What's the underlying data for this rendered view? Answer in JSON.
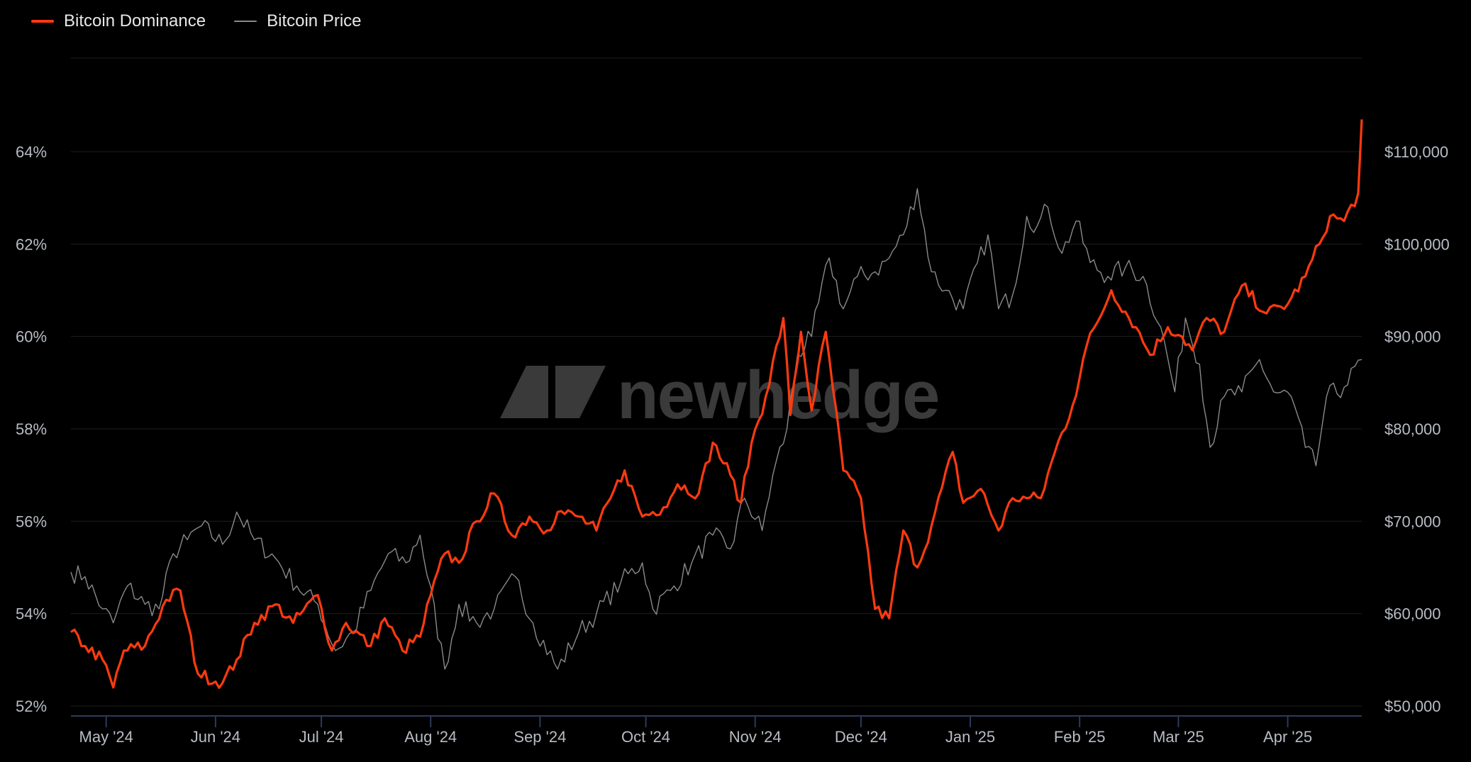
{
  "legend": {
    "dominance_label": "Bitcoin Dominance",
    "price_label": "Bitcoin Price"
  },
  "watermark": "newhedge",
  "colors": {
    "dominance": "#ff3a0f",
    "price": "#8a8a8a",
    "grid": "#1e1e1e",
    "axis": "#2b3a5c",
    "text": "#b8bcc4"
  },
  "chart_data": {
    "type": "line",
    "x_labels": [
      "May '24",
      "Jun '24",
      "Jul '24",
      "Aug '24",
      "Sep '24",
      "Oct '24",
      "Nov '24",
      "Dec '24",
      "Jan '25",
      "Feb '25",
      "Mar '25",
      "Apr '25"
    ],
    "y_left": {
      "ticks": [
        "52%",
        "54%",
        "56%",
        "58%",
        "60%",
        "62%",
        "64%"
      ],
      "range": [
        52,
        64
      ]
    },
    "y_right": {
      "ticks": [
        "$50,000",
        "$60,000",
        "$70,000",
        "$80,000",
        "$90,000",
        "$100,000",
        "$110,000"
      ],
      "range": [
        50000,
        110000
      ]
    },
    "x_range": [
      "2024-04-21",
      "2025-04-22"
    ],
    "grid": true,
    "legend_position": "top-left",
    "series": [
      {
        "name": "Bitcoin Dominance",
        "axis": "left",
        "keypoints": [
          [
            "2024-04-21",
            53.6
          ],
          [
            "2024-04-25",
            53.3
          ],
          [
            "2024-04-30",
            53.0
          ],
          [
            "2024-05-03",
            52.4
          ],
          [
            "2024-05-06",
            53.2
          ],
          [
            "2024-05-12",
            53.3
          ],
          [
            "2024-05-18",
            54.3
          ],
          [
            "2024-05-22",
            54.5
          ],
          [
            "2024-05-27",
            52.7
          ],
          [
            "2024-06-03",
            52.5
          ],
          [
            "2024-06-07",
            53.0
          ],
          [
            "2024-06-12",
            53.8
          ],
          [
            "2024-06-18",
            54.2
          ],
          [
            "2024-06-23",
            53.8
          ],
          [
            "2024-06-30",
            54.4
          ],
          [
            "2024-07-04",
            53.2
          ],
          [
            "2024-07-08",
            53.8
          ],
          [
            "2024-07-15",
            53.3
          ],
          [
            "2024-07-19",
            53.9
          ],
          [
            "2024-07-24",
            53.2
          ],
          [
            "2024-07-29",
            53.5
          ],
          [
            "2024-08-01",
            54.4
          ],
          [
            "2024-08-05",
            55.3
          ],
          [
            "2024-08-09",
            55.1
          ],
          [
            "2024-08-14",
            56.0
          ],
          [
            "2024-08-19",
            56.6
          ],
          [
            "2024-08-24",
            55.7
          ],
          [
            "2024-08-29",
            56.1
          ],
          [
            "2024-09-03",
            55.8
          ],
          [
            "2024-09-06",
            56.2
          ],
          [
            "2024-09-12",
            56.1
          ],
          [
            "2024-09-17",
            55.8
          ],
          [
            "2024-09-21",
            56.5
          ],
          [
            "2024-09-25",
            57.1
          ],
          [
            "2024-09-30",
            56.1
          ],
          [
            "2024-10-06",
            56.3
          ],
          [
            "2024-10-10",
            56.8
          ],
          [
            "2024-10-16",
            56.6
          ],
          [
            "2024-10-20",
            57.7
          ],
          [
            "2024-10-25",
            57.0
          ],
          [
            "2024-10-28",
            56.4
          ],
          [
            "2024-10-31",
            57.7
          ],
          [
            "2024-11-04",
            58.7
          ],
          [
            "2024-11-09",
            60.4
          ],
          [
            "2024-11-11",
            58.3
          ],
          [
            "2024-11-14",
            60.1
          ],
          [
            "2024-11-17",
            58.4
          ],
          [
            "2024-11-21",
            60.1
          ],
          [
            "2024-11-26",
            57.1
          ],
          [
            "2024-12-01",
            56.5
          ],
          [
            "2024-12-05",
            54.1
          ],
          [
            "2024-12-09",
            53.9
          ],
          [
            "2024-12-13",
            55.8
          ],
          [
            "2024-12-17",
            55.0
          ],
          [
            "2024-12-21",
            55.9
          ],
          [
            "2024-12-27",
            57.5
          ],
          [
            "2024-12-30",
            56.4
          ],
          [
            "2025-01-04",
            56.7
          ],
          [
            "2025-01-09",
            55.8
          ],
          [
            "2025-01-13",
            56.5
          ],
          [
            "2025-01-17",
            56.5
          ],
          [
            "2025-01-21",
            56.5
          ],
          [
            "2025-01-25",
            57.5
          ],
          [
            "2025-01-30",
            58.5
          ],
          [
            "2025-02-03",
            59.8
          ],
          [
            "2025-02-06",
            60.3
          ],
          [
            "2025-02-10",
            61.0
          ],
          [
            "2025-02-17",
            60.2
          ],
          [
            "2025-02-21",
            59.6
          ],
          [
            "2025-02-26",
            60.2
          ],
          [
            "2025-03-02",
            60.0
          ],
          [
            "2025-03-05",
            59.7
          ],
          [
            "2025-03-09",
            60.4
          ],
          [
            "2025-03-14",
            60.1
          ],
          [
            "2025-03-19",
            61.1
          ],
          [
            "2025-03-26",
            60.5
          ],
          [
            "2025-04-01",
            60.7
          ],
          [
            "2025-04-06",
            61.3
          ],
          [
            "2025-04-10",
            62.0
          ],
          [
            "2025-04-13",
            62.6
          ],
          [
            "2025-04-17",
            62.5
          ],
          [
            "2025-04-21",
            63.1
          ],
          [
            "2025-04-22",
            64.7
          ]
        ]
      },
      {
        "name": "Bitcoin Price",
        "axis": "right",
        "keypoints": [
          [
            "2024-04-21",
            64500
          ],
          [
            "2024-04-25",
            64000
          ],
          [
            "2024-04-30",
            60500
          ],
          [
            "2024-05-03",
            59000
          ],
          [
            "2024-05-07",
            63000
          ],
          [
            "2024-05-12",
            61000
          ],
          [
            "2024-05-16",
            60500
          ],
          [
            "2024-05-20",
            66500
          ],
          [
            "2024-05-24",
            68000
          ],
          [
            "2024-05-28",
            69500
          ],
          [
            "2024-06-03",
            67500
          ],
          [
            "2024-06-07",
            71000
          ],
          [
            "2024-06-12",
            68000
          ],
          [
            "2024-06-18",
            66000
          ],
          [
            "2024-06-24",
            63000
          ],
          [
            "2024-06-30",
            61000
          ],
          [
            "2024-07-05",
            56000
          ],
          [
            "2024-07-10",
            58000
          ],
          [
            "2024-07-15",
            62500
          ],
          [
            "2024-07-20",
            66500
          ],
          [
            "2024-07-25",
            65500
          ],
          [
            "2024-07-29",
            68500
          ],
          [
            "2024-08-05",
            54000
          ],
          [
            "2024-08-09",
            61000
          ],
          [
            "2024-08-14",
            59000
          ],
          [
            "2024-08-19",
            60500
          ],
          [
            "2024-08-25",
            64000
          ],
          [
            "2024-08-30",
            59000
          ],
          [
            "2024-09-06",
            54000
          ],
          [
            "2024-09-12",
            58000
          ],
          [
            "2024-09-17",
            60000
          ],
          [
            "2024-09-24",
            63500
          ],
          [
            "2024-09-30",
            65500
          ],
          [
            "2024-10-03",
            60500
          ],
          [
            "2024-10-08",
            62500
          ],
          [
            "2024-10-14",
            65500
          ],
          [
            "2024-10-20",
            68500
          ],
          [
            "2024-10-25",
            67000
          ],
          [
            "2024-10-29",
            72500
          ],
          [
            "2024-11-03",
            69000
          ],
          [
            "2024-11-06",
            75000
          ],
          [
            "2024-11-10",
            80000
          ],
          [
            "2024-11-13",
            88000
          ],
          [
            "2024-11-17",
            90000
          ],
          [
            "2024-11-22",
            98500
          ],
          [
            "2024-11-26",
            93000
          ],
          [
            "2024-11-30",
            96500
          ],
          [
            "2024-12-05",
            97000
          ],
          [
            "2024-12-09",
            98500
          ],
          [
            "2024-12-13",
            101000
          ],
          [
            "2024-12-17",
            106000
          ],
          [
            "2024-12-21",
            97000
          ],
          [
            "2024-12-25",
            95000
          ],
          [
            "2024-12-30",
            93000
          ],
          [
            "2025-01-06",
            101000
          ],
          [
            "2025-01-09",
            93000
          ],
          [
            "2025-01-13",
            94500
          ],
          [
            "2025-01-17",
            103000
          ],
          [
            "2025-01-20",
            102000
          ],
          [
            "2025-01-23",
            104000
          ],
          [
            "2025-01-27",
            99000
          ],
          [
            "2025-01-31",
            102500
          ],
          [
            "2025-02-04",
            98000
          ],
          [
            "2025-02-09",
            96500
          ],
          [
            "2025-02-14",
            97500
          ],
          [
            "2025-02-19",
            96500
          ],
          [
            "2025-02-24",
            91000
          ],
          [
            "2025-02-28",
            84000
          ],
          [
            "2025-03-03",
            92000
          ],
          [
            "2025-03-07",
            87000
          ],
          [
            "2025-03-10",
            78000
          ],
          [
            "2025-03-14",
            83500
          ],
          [
            "2025-03-19",
            84000
          ],
          [
            "2025-03-24",
            87500
          ],
          [
            "2025-03-28",
            84000
          ],
          [
            "2025-04-02",
            83500
          ],
          [
            "2025-04-06",
            78000
          ],
          [
            "2025-04-09",
            76000
          ],
          [
            "2025-04-12",
            83500
          ],
          [
            "2025-04-17",
            84500
          ],
          [
            "2025-04-22",
            87500
          ]
        ]
      }
    ]
  }
}
